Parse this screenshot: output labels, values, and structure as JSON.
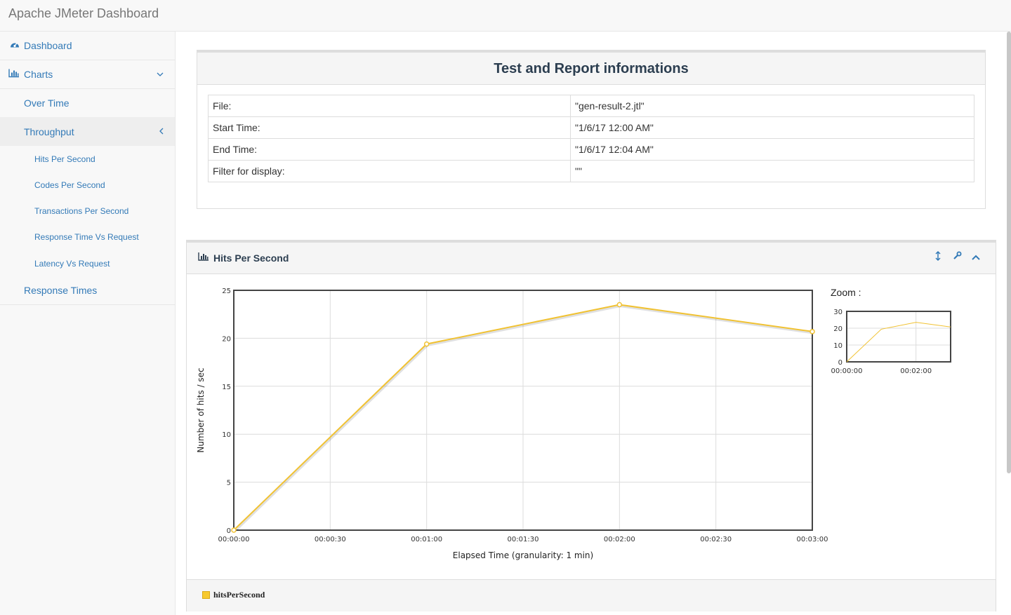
{
  "app": {
    "title": "Apache JMeter Dashboard"
  },
  "sidebar": {
    "dashboard": {
      "label": "Dashboard",
      "icon": "dashboard-icon"
    },
    "charts": {
      "label": "Charts",
      "icon": "bar-chart-icon"
    },
    "over_time": "Over Time",
    "throughput": "Throughput",
    "sub_items": [
      "Hits Per Second",
      "Codes Per Second",
      "Transactions Per Second",
      "Response Time Vs Request",
      "Latency Vs Request"
    ],
    "response_times": "Response Times"
  },
  "info": {
    "title": "Test and Report informations",
    "rows": [
      {
        "key": "File:",
        "value": "\"gen-result-2.jtl\""
      },
      {
        "key": "Start Time:",
        "value": "\"1/6/17 12:00 AM\""
      },
      {
        "key": "End Time:",
        "value": "\"1/6/17 12:04 AM\""
      },
      {
        "key": "Filter for display:",
        "value": "\"\""
      }
    ]
  },
  "chart_panel": {
    "title": "Hits Per Second",
    "zoom_label": "Zoom :",
    "legend": "hitsPerSecond"
  },
  "colors": {
    "series": "#f1c232",
    "link": "#337ab7",
    "heading": "#2c3e50"
  },
  "chart_data": [
    {
      "type": "line",
      "title": "",
      "xlabel": "Elapsed Time (granularity: 1 min)",
      "ylabel": "Number of hits / sec",
      "x_ticks": [
        "00:00:00",
        "00:00:30",
        "00:01:00",
        "00:01:30",
        "00:02:00",
        "00:02:30",
        "00:03:00"
      ],
      "y_ticks": [
        "0",
        "5",
        "10",
        "15",
        "20",
        "25"
      ],
      "xlim": [
        0,
        180
      ],
      "ylim": [
        0,
        25
      ],
      "grid": true,
      "series": [
        {
          "name": "hitsPerSecond",
          "x": [
            "00:00:00",
            "00:01:00",
            "00:02:00",
            "00:03:00"
          ],
          "y": [
            0,
            19.4,
            23.5,
            20.7
          ]
        }
      ]
    },
    {
      "type": "line",
      "title": "Zoom :",
      "x_ticks": [
        "00:00:00",
        "00:02:00"
      ],
      "y_ticks": [
        "0",
        "10",
        "20",
        "30"
      ],
      "xlim": [
        0,
        180
      ],
      "ylim": [
        0,
        30
      ],
      "series": [
        {
          "name": "hitsPerSecond",
          "x": [
            "00:00:00",
            "00:01:00",
            "00:02:00",
            "00:03:00"
          ],
          "y": [
            0,
            19.4,
            23.5,
            20.7
          ]
        }
      ]
    }
  ]
}
